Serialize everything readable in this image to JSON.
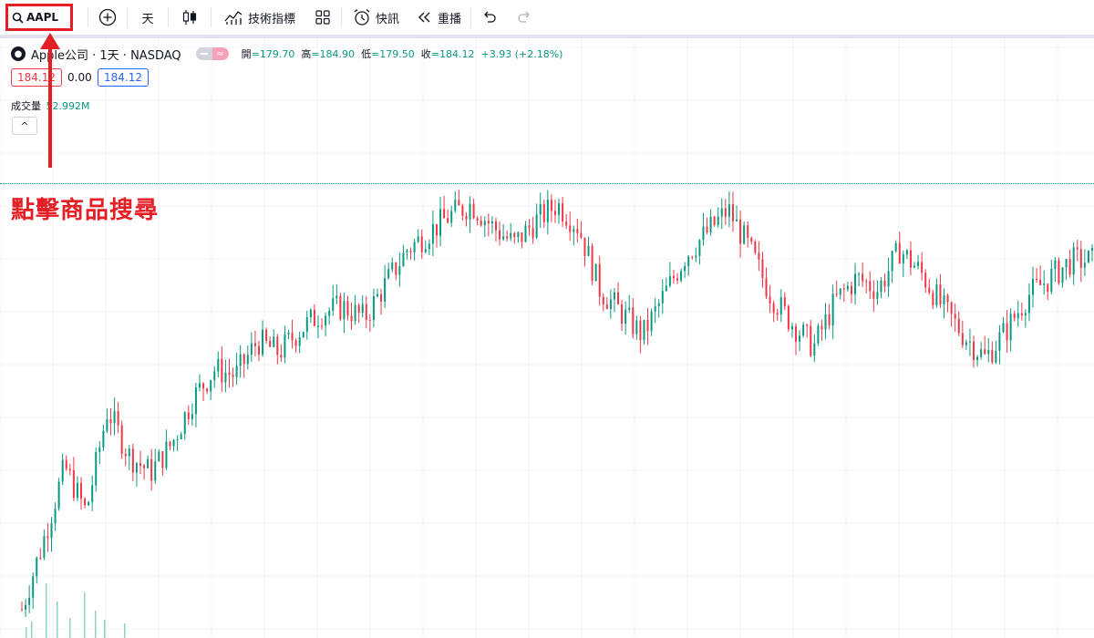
{
  "toolbar": {
    "symbol": "AAPL",
    "interval": "天",
    "indicators_label": "技術指標",
    "alert_label": "快訊",
    "replay_label": "重播"
  },
  "legend": {
    "title": "Apple公司 · 1天 · NASDAQ",
    "open_label": "開",
    "open_value": "=179.70",
    "high_label": "高",
    "high_value": "=184.90",
    "low_label": "低",
    "low_value": "=179.50",
    "close_label": "收",
    "close_value": "=184.12",
    "change": "+3.93 (+2.18%)",
    "bid": "184.12",
    "spread": "0.00",
    "ask": "184.12",
    "volume_label": "成交量",
    "volume_value": "52.992M"
  },
  "annotation": "點擊商品搜尋",
  "colors": {
    "up": "#089981",
    "down": "#f23645",
    "highlight": "#e31e24",
    "grid": "#f0f3fa"
  },
  "chart_data": {
    "type": "candlestick",
    "last_close": 184.12,
    "approx_closes": [
      123,
      135,
      148,
      140,
      158,
      150,
      147,
      152,
      160,
      165,
      164,
      170,
      168,
      172,
      175,
      176,
      174,
      180,
      186,
      189,
      192,
      194,
      190,
      187,
      191,
      194,
      190,
      179,
      175,
      171,
      178,
      185,
      189,
      193,
      186,
      178,
      173,
      169,
      177,
      181,
      179,
      186,
      182,
      176,
      171,
      167,
      172,
      178,
      181,
      184,
      184.12
    ]
  }
}
